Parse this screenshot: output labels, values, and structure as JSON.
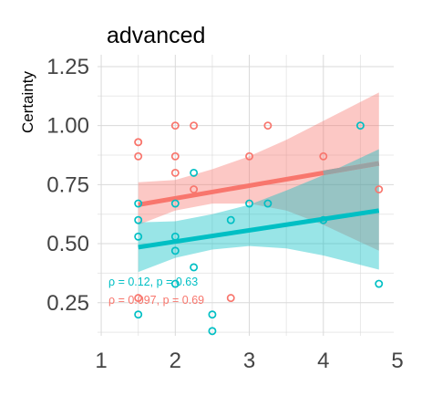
{
  "chart_data": {
    "type": "scatter",
    "title": "advanced",
    "xlabel": "",
    "ylabel": "Certainty",
    "xlim": [
      0.95,
      4.95
    ],
    "ylim": [
      0.11,
      1.3
    ],
    "x_ticks": [
      1,
      2,
      3,
      4,
      5
    ],
    "x_tick_labels": [
      "1",
      "2",
      "3",
      "4",
      "5"
    ],
    "y_ticks": [
      0.25,
      0.5,
      0.75,
      1.0,
      1.25
    ],
    "y_tick_labels": [
      "0.25",
      "0.50",
      "0.75",
      "1.00",
      "1.25"
    ],
    "grid": true,
    "legend": "none",
    "series": [
      {
        "color": "#F8766D",
        "points": [
          [
            1.5,
            0.93
          ],
          [
            1.5,
            0.93
          ],
          [
            1.5,
            0.87
          ],
          [
            2.0,
            1.0
          ],
          [
            2.25,
            1.0
          ],
          [
            2.0,
            0.87
          ],
          [
            2.0,
            0.8
          ],
          [
            2.25,
            0.73
          ],
          [
            3.0,
            0.87
          ],
          [
            3.25,
            1.0
          ],
          [
            4.0,
            0.87
          ],
          [
            4.75,
            0.73
          ],
          [
            2.75,
            0.27
          ],
          [
            1.5,
            0.27
          ]
        ],
        "fit": {
          "x": [
            1.5,
            4.75
          ],
          "y": [
            0.665,
            0.84
          ]
        },
        "ci_lower": [
          [
            1.5,
            0.58
          ],
          [
            2.0,
            0.64
          ],
          [
            2.5,
            0.67
          ],
          [
            3.0,
            0.67
          ],
          [
            3.5,
            0.64
          ],
          [
            4.0,
            0.58
          ],
          [
            4.75,
            0.47
          ]
        ],
        "ci_upper": [
          [
            1.5,
            0.76
          ],
          [
            2.0,
            0.77
          ],
          [
            2.5,
            0.815
          ],
          [
            3.0,
            0.87
          ],
          [
            3.5,
            0.94
          ],
          [
            4.0,
            1.02
          ],
          [
            4.75,
            1.14
          ]
        ],
        "annotation": "ρ = 0.097, p = 0.69"
      },
      {
        "color": "#00BFC4",
        "points": [
          [
            1.5,
            0.67
          ],
          [
            1.5,
            0.6
          ],
          [
            1.5,
            0.53
          ],
          [
            1.5,
            0.2
          ],
          [
            2.0,
            0.67
          ],
          [
            2.0,
            0.53
          ],
          [
            2.0,
            0.47
          ],
          [
            2.0,
            0.33
          ],
          [
            2.25,
            0.8
          ],
          [
            2.25,
            0.4
          ],
          [
            2.5,
            0.2
          ],
          [
            2.5,
            0.13
          ],
          [
            2.75,
            0.6
          ],
          [
            3.0,
            0.67
          ],
          [
            3.25,
            0.67
          ],
          [
            4.0,
            0.6
          ],
          [
            4.5,
            1.0
          ],
          [
            4.75,
            0.33
          ]
        ],
        "fit": {
          "x": [
            1.5,
            4.75
          ],
          "y": [
            0.485,
            0.64
          ]
        },
        "ci_lower": [
          [
            1.5,
            0.38
          ],
          [
            2.0,
            0.44
          ],
          [
            2.5,
            0.475
          ],
          [
            3.0,
            0.49
          ],
          [
            3.5,
            0.48
          ],
          [
            4.0,
            0.45
          ],
          [
            4.75,
            0.39
          ]
        ],
        "ci_upper": [
          [
            1.5,
            0.59
          ],
          [
            2.0,
            0.595
          ],
          [
            2.5,
            0.625
          ],
          [
            3.0,
            0.665
          ],
          [
            3.5,
            0.725
          ],
          [
            4.0,
            0.79
          ],
          [
            4.75,
            0.9
          ]
        ],
        "annotation": "ρ = 0.12, p = 0.63"
      }
    ],
    "overlap_color": "#99A3A4"
  }
}
